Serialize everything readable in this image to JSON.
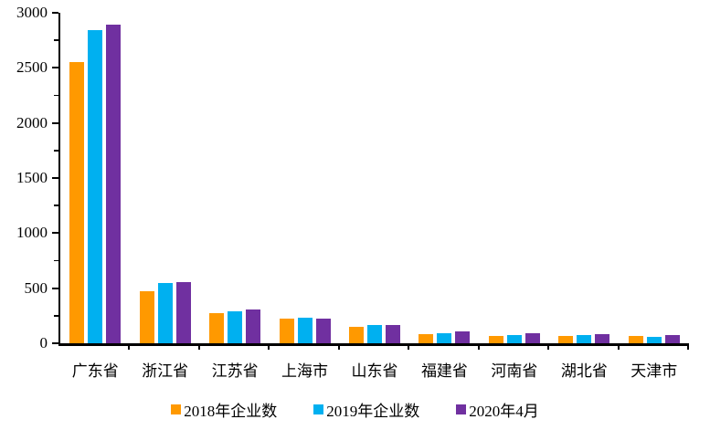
{
  "chart_data": {
    "type": "bar",
    "title": "",
    "xlabel": "",
    "ylabel": "",
    "categories": [
      "广东省",
      "浙江省",
      "江苏省",
      "上海市",
      "山东省",
      "福建省",
      "河南省",
      "湖北省",
      "天津市"
    ],
    "series": [
      {
        "name": "2018年企业数",
        "color": "#FF9900",
        "values": [
          2550,
          475,
          270,
          225,
          150,
          85,
          70,
          70,
          65
        ]
      },
      {
        "name": "2019年企业数",
        "color": "#00B0F0",
        "values": [
          2840,
          545,
          290,
          232,
          170,
          95,
          78,
          78,
          60
        ]
      },
      {
        "name": "2020年4月",
        "color": "#7030A0",
        "values": [
          2890,
          555,
          310,
          220,
          168,
          105,
          88,
          80,
          78
        ]
      }
    ],
    "ylim": [
      0,
      3000
    ],
    "yticks": [
      0,
      500,
      1000,
      1500,
      2000,
      2500,
      3000
    ],
    "yminor_interval": 250,
    "grid": false,
    "legend_position": "bottom",
    "axis_color": "#000000",
    "background_color": "#FFFFFF"
  }
}
